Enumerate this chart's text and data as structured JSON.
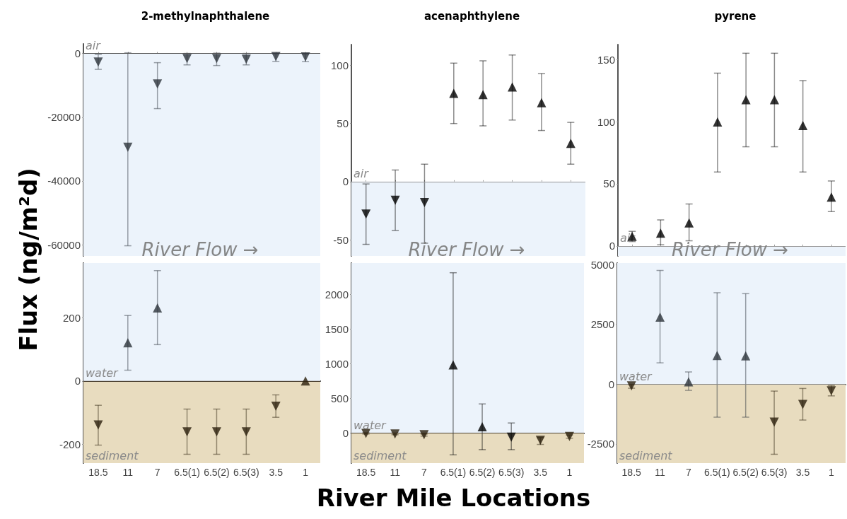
{
  "chart_data": [
    {
      "type": "scatter",
      "title": "2-methylnaphthalene",
      "ylabel": "Flux (ng/m²d)",
      "categories": [
        null,
        null,
        null,
        null,
        null,
        null,
        null,
        null
      ],
      "marker": "triangle",
      "tick_labels": "y",
      "ylim": [
        -63500,
        3000
      ],
      "yticks": [
        -60000,
        -40000,
        -20000,
        0
      ],
      "series": [
        {
          "values": [
            -2700,
            -29400,
            -9600,
            -1600,
            -1600,
            -1800,
            -1000,
            -1100
          ],
          "errors": [
            [
              -5000,
              -300
            ],
            [
              -60300,
              200
            ],
            [
              -17300,
              -2900
            ],
            [
              -3600,
              0
            ],
            [
              -3800,
              100
            ],
            [
              -3600,
              0
            ],
            [
              -2500,
              -100
            ],
            [
              -2600,
              -200
            ]
          ],
          "colors": [
            "#2d333b",
            "#2d333b",
            "#2d333b",
            "#2d333b",
            "#2d333b",
            "#2d333b",
            "#2d333b",
            "#2d333b"
          ]
        }
      ],
      "bands": [
        {
          "axis": "y",
          "from": -63500,
          "to": 0,
          "color": "#ecf3fb"
        }
      ],
      "ref_lines": [
        {
          "axis": "y",
          "value": 0,
          "label": "air",
          "color": "#555555"
        }
      ],
      "annotations": [
        "River Flow →"
      ]
    },
    {
      "type": "scatter",
      "title": "acenaphthylene",
      "categories": [
        null,
        null,
        null,
        null,
        null,
        null,
        null,
        null
      ],
      "marker": "triangle",
      "tick_labels": "y",
      "ylim": [
        -64,
        118
      ],
      "yticks": [
        -50,
        0,
        50,
        100
      ],
      "series": [
        {
          "values": [
            -28,
            -16,
            -18,
            76,
            75,
            81.5,
            68,
            33
          ],
          "errors": [
            [
              -54,
              -2
            ],
            [
              -42,
              10
            ],
            [
              -53,
              15
            ],
            [
              50,
              102
            ],
            [
              48,
              104
            ],
            [
              53,
              109
            ],
            [
              44,
              93
            ],
            [
              15,
              51
            ]
          ],
          "colors": [
            "#000000",
            "#000000",
            "#000000",
            "#000000",
            "#000000",
            "#000000",
            "#000000",
            "#000000"
          ]
        }
      ],
      "bands": [
        {
          "axis": "y",
          "from": -64,
          "to": 0,
          "color": "#ecf3fb"
        }
      ],
      "ref_lines": [
        {
          "axis": "y",
          "value": 0,
          "label": "air",
          "color": "#999999"
        }
      ],
      "annotations": [
        "River Flow →"
      ]
    },
    {
      "type": "scatter",
      "title": "pyrene",
      "categories": [
        null,
        null,
        null,
        null,
        null,
        null,
        null,
        null
      ],
      "marker": "triangle",
      "tick_labels": "y",
      "ylim": [
        -8,
        162
      ],
      "yticks": [
        0,
        50,
        100,
        150
      ],
      "series": [
        {
          "values": [
            7.8,
            10.4,
            18.6,
            99.7,
            117.7,
            117.7,
            96.9,
            39.4
          ],
          "errors": [
            [
              3.6,
              11.8
            ],
            [
              1,
              21
            ],
            [
              4.2,
              33.8
            ],
            [
              59.5,
              139
            ],
            [
              79.8,
              155
            ],
            [
              79.8,
              155
            ],
            [
              59.5,
              133
            ],
            [
              27.7,
              52.3
            ]
          ],
          "colors": [
            "#000000",
            "#000000",
            "#000000",
            "#000000",
            "#000000",
            "#000000",
            "#000000",
            "#000000"
          ]
        }
      ],
      "bands": [
        {
          "axis": "y",
          "from": -8,
          "to": 0,
          "color": "#ecf3fb"
        }
      ],
      "ref_lines": [
        {
          "axis": "y",
          "value": 0,
          "label": "air",
          "color": "#999999"
        }
      ],
      "annotations": [
        "River Flow →"
      ]
    },
    {
      "type": "scatter",
      "categories": [
        "18.5",
        "11",
        "7",
        "6.5(1)",
        "6.5(2)",
        "6.5(3)",
        "3.5",
        "1"
      ],
      "marker": "triangle",
      "ylim": [
        -260,
        373
      ],
      "yticks": [
        -200,
        0,
        200
      ],
      "series": [
        {
          "values": [
            -139,
            121,
            231,
            -161,
            -161,
            -161,
            -80,
            0
          ],
          "errors": [
            [
              -203,
              -77
            ],
            [
              34,
              207
            ],
            [
              115,
              349
            ],
            [
              -232,
              -89
            ],
            [
              -232,
              -89
            ],
            [
              -232,
              -89
            ],
            [
              -115,
              -44
            ],
            null
          ],
          "colors": [
            "#2a1f0c",
            "#2d333b",
            "#2d333b",
            "#2a1f0c",
            "#2a1f0c",
            "#2a1f0c",
            "#2a1f0c",
            "#2a1f0c"
          ]
        }
      ],
      "bands": [
        {
          "axis": "y",
          "from": -260,
          "to": 0,
          "label": "sediment",
          "color": "#e8dcbf"
        },
        {
          "axis": "y",
          "from": 0,
          "to": 373,
          "label": "water",
          "color": "#ecf3fb"
        }
      ],
      "ref_lines": [
        {
          "axis": "y",
          "value": 0,
          "color": "#4a4030"
        }
      ]
    },
    {
      "type": "scatter",
      "xlabel": "River Mile Locations",
      "categories": [
        "18.5",
        "11",
        "7",
        "6.5(1)",
        "6.5(2)",
        "6.5(3)",
        "3.5",
        "1"
      ],
      "marker": "triangle",
      "ylim": [
        -435,
        2455
      ],
      "yticks": [
        0,
        500,
        1000,
        1500,
        2000
      ],
      "series": [
        {
          "values": [
            -5,
            -15,
            -25,
            985,
            90,
            -60,
            -105,
            -50
          ],
          "errors": [
            [
              -15,
              5
            ],
            [
              -25,
              0
            ],
            [
              -45,
              -15
            ],
            [
              -315,
              2315
            ],
            [
              -240,
              420
            ],
            [
              -240,
              145
            ],
            [
              -165,
              -65
            ],
            [
              -75,
              -30
            ]
          ],
          "colors": [
            "#2a1f0c",
            "#2a1f0c",
            "#2a1f0c",
            "#000000",
            "#000000",
            "#000000",
            "#2a1f0c",
            "#2a1f0c"
          ]
        }
      ],
      "bands": [
        {
          "axis": "y",
          "from": -435,
          "to": 0,
          "label": "sediment",
          "color": "#e8dcbf"
        },
        {
          "axis": "y",
          "from": 0,
          "to": 2455,
          "label": "water",
          "color": "#ecf3fb"
        }
      ],
      "ref_lines": [
        {
          "axis": "y",
          "value": 0,
          "color": "#4a4030"
        }
      ]
    },
    {
      "type": "scatter",
      "categories": [
        "18.5",
        "11",
        "7",
        "6.5(1)",
        "6.5(2)",
        "6.5(3)",
        "3.5",
        "1"
      ],
      "marker": "triangle",
      "ylim": [
        -3300,
        5060
      ],
      "yticks": [
        -2500,
        0,
        2500,
        5000
      ],
      "series": [
        {
          "values": [
            -70,
            2800,
            100,
            1200,
            1180,
            -1590,
            -850,
            -280
          ],
          "errors": [
            [
              -170,
              -20
            ],
            [
              890,
              4750
            ],
            [
              -260,
              510
            ],
            [
              -1380,
              3820
            ],
            [
              -1380,
              3780
            ],
            [
              -2930,
              -290
            ],
            [
              -1500,
              -180
            ],
            [
              -490,
              -60
            ]
          ],
          "colors": [
            "#2a1f0c",
            "#2d333b",
            "#2d333b",
            "#2d333b",
            "#2d333b",
            "#2a1f0c",
            "#2a1f0c",
            "#2a1f0c"
          ]
        }
      ],
      "bands": [
        {
          "axis": "y",
          "from": -3300,
          "to": 0,
          "label": "sediment",
          "color": "#e8dcbf"
        },
        {
          "axis": "y",
          "from": 0,
          "to": 5060,
          "label": "water",
          "color": "#ecf3fb"
        }
      ],
      "ref_lines": [
        {
          "axis": "y",
          "value": 0,
          "color": "#888888"
        }
      ]
    }
  ]
}
